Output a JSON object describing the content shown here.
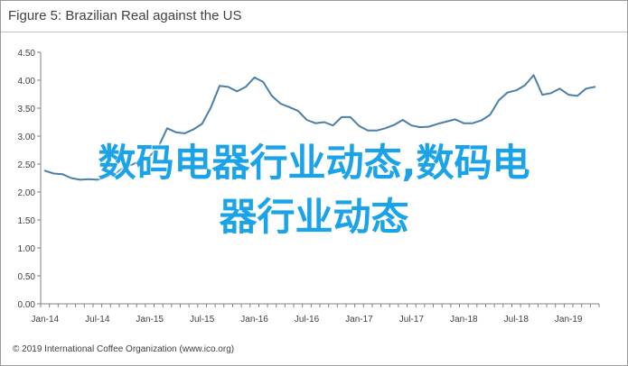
{
  "title": "Figure 5: Brazilian Real against the US",
  "footer": "© 2019 International Coffee Organization (www.ico.org)",
  "overlay_text": {
    "line1": "数码电器行业动态,数码电",
    "line2": "器行业动态"
  },
  "colors": {
    "line": "#4a7fa8",
    "overlay": "#1aa3e8",
    "axis": "#808080",
    "grid": "#d9d9d9"
  },
  "chart_data": {
    "type": "line",
    "title": "Figure 5: Brazilian Real against the US",
    "xlabel": "",
    "ylabel": "",
    "ylim": [
      0,
      4.5
    ],
    "yticks": [
      "0.00",
      "0.50",
      "1.00",
      "1.50",
      "2.00",
      "2.50",
      "3.00",
      "3.50",
      "4.00",
      "4.50"
    ],
    "ytick_values": [
      0,
      0.5,
      1,
      1.5,
      2,
      2.5,
      3,
      3.5,
      4,
      4.5
    ],
    "xticks": [
      "Jan-14",
      "Jul-14",
      "Jan-15",
      "Jul-15",
      "Jan-16",
      "Jul-16",
      "Jan-17",
      "Jul-17",
      "Jan-18",
      "Jul-18",
      "Jan-19"
    ],
    "grid": false,
    "legend": "none",
    "series": [
      {
        "values": [
          2.38,
          2.33,
          2.32,
          2.25,
          2.22,
          2.23,
          2.22,
          2.27,
          2.32,
          2.44,
          2.49,
          2.57,
          2.64,
          2.81,
          3.14,
          3.07,
          3.05,
          3.12,
          3.22,
          3.51,
          3.9,
          3.88,
          3.8,
          3.88,
          4.05,
          3.97,
          3.72,
          3.58,
          3.52,
          3.45,
          3.29,
          3.23,
          3.25,
          3.19,
          3.34,
          3.34,
          3.18,
          3.1,
          3.1,
          3.14,
          3.2,
          3.29,
          3.19,
          3.16,
          3.17,
          3.22,
          3.26,
          3.3,
          3.23,
          3.23,
          3.28,
          3.38,
          3.64,
          3.78,
          3.82,
          3.91,
          4.09,
          3.74,
          3.77,
          3.85,
          3.74,
          3.72,
          3.85,
          3.88
        ]
      }
    ]
  }
}
